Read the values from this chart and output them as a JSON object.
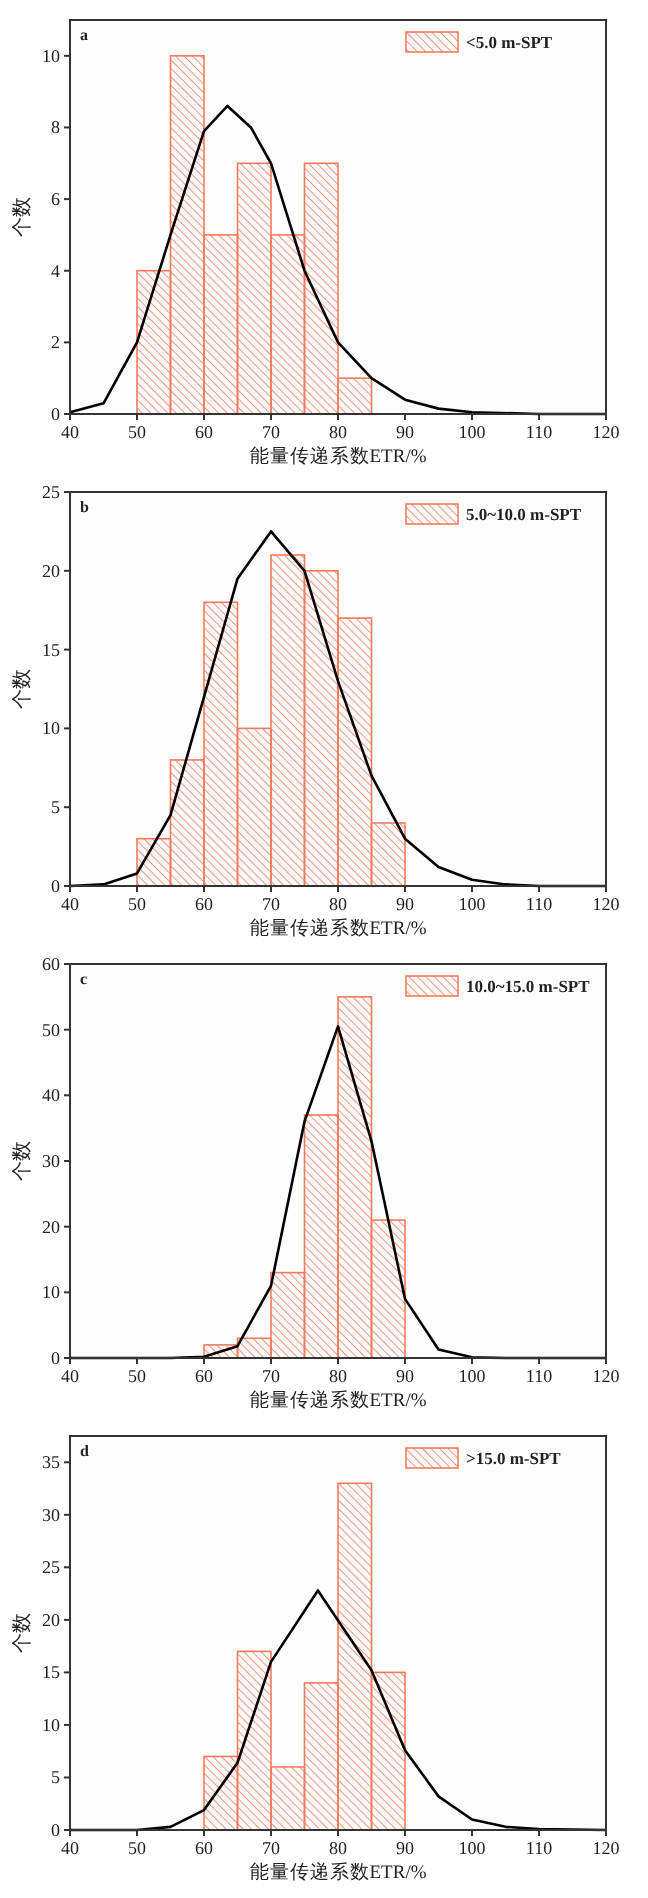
{
  "chart_data": [
    {
      "type": "histogram",
      "xlabel": "能量传递系数ETR/%",
      "ylabel": "个数",
      "annotations": [
        "a"
      ],
      "xlim": [
        40,
        120
      ],
      "xticks": [
        40,
        50,
        60,
        70,
        80,
        90,
        100,
        110,
        120
      ],
      "ylim": [
        0,
        11
      ],
      "yticks": [
        0,
        2,
        4,
        6,
        8,
        10
      ],
      "legend": "top right",
      "series": [
        {
          "type": "histogram",
          "name": "<5.0 m-SPT",
          "color": "#f47a5c",
          "bins": [
            50,
            55,
            60,
            65,
            70,
            75,
            80,
            85
          ],
          "values": [
            4,
            10,
            5,
            7,
            5,
            7,
            1
          ]
        },
        {
          "type": "line",
          "color": "#000000",
          "x": [
            40,
            45,
            50,
            55,
            60,
            63.5,
            67,
            70,
            75,
            80,
            85,
            90,
            95,
            100,
            110,
            120
          ],
          "values": [
            0.05,
            0.3,
            2,
            5,
            7.9,
            8.6,
            8,
            7,
            4,
            2,
            1,
            0.4,
            0.15,
            0.05,
            0,
            0
          ]
        }
      ]
    },
    {
      "type": "histogram",
      "xlabel": "能量传递系数ETR/%",
      "ylabel": "个数",
      "annotations": [
        "b"
      ],
      "xlim": [
        40,
        120
      ],
      "xticks": [
        40,
        50,
        60,
        70,
        80,
        90,
        100,
        110,
        120
      ],
      "ylim": [
        0,
        25
      ],
      "yticks": [
        0,
        5,
        10,
        15,
        20,
        25
      ],
      "legend": "top right",
      "series": [
        {
          "type": "histogram",
          "name": "5.0~10.0 m-SPT",
          "color": "#f47a5c",
          "bins": [
            50,
            55,
            60,
            65,
            70,
            75,
            80,
            85,
            90
          ],
          "values": [
            3,
            8,
            18,
            10,
            21,
            20,
            17,
            4
          ]
        },
        {
          "type": "line",
          "color": "#000000",
          "x": [
            40,
            45,
            50,
            55,
            60,
            65,
            70,
            75,
            80,
            85,
            90,
            95,
            100,
            105,
            110,
            120
          ],
          "values": [
            0,
            0.1,
            0.8,
            4.5,
            12,
            19.5,
            22.5,
            20,
            13,
            7,
            3,
            1.2,
            0.4,
            0.1,
            0,
            0
          ]
        }
      ]
    },
    {
      "type": "histogram",
      "xlabel": "能量传递系数ETR/%",
      "ylabel": "个数",
      "annotations": [
        "c"
      ],
      "xlim": [
        40,
        120
      ],
      "xticks": [
        40,
        50,
        60,
        70,
        80,
        90,
        100,
        110,
        120
      ],
      "ylim": [
        0,
        60
      ],
      "yticks": [
        0,
        10,
        20,
        30,
        40,
        50,
        60
      ],
      "legend": "top right",
      "series": [
        {
          "type": "histogram",
          "name": "10.0~15.0 m-SPT",
          "color": "#f47a5c",
          "bins": [
            60,
            65,
            70,
            75,
            80,
            85,
            90
          ],
          "values": [
            2,
            3,
            13,
            37,
            55,
            21
          ]
        },
        {
          "type": "line",
          "color": "#000000",
          "x": [
            40,
            55,
            60,
            65,
            70,
            75,
            80,
            85,
            90,
            95,
            100,
            105,
            120
          ],
          "values": [
            0,
            0,
            0.2,
            1.8,
            11,
            36,
            50.5,
            33,
            9,
            1.3,
            0.1,
            0,
            0
          ]
        }
      ]
    },
    {
      "type": "histogram",
      "xlabel": "能量传递系数ETR/%",
      "ylabel": "个数",
      "annotations": [
        "d"
      ],
      "xlim": [
        40,
        120
      ],
      "xticks": [
        40,
        50,
        60,
        70,
        80,
        90,
        100,
        110,
        120
      ],
      "ylim": [
        0,
        37.5
      ],
      "yticks": [
        0,
        5,
        10,
        15,
        20,
        25,
        30,
        35
      ],
      "legend": "top right",
      "series": [
        {
          "type": "histogram",
          "name": ">15.0 m-SPT",
          "color": "#f47a5c",
          "bins": [
            60,
            65,
            70,
            75,
            80,
            85,
            90
          ],
          "values": [
            7,
            17,
            6,
            14,
            33,
            15
          ]
        },
        {
          "type": "line",
          "color": "#000000",
          "x": [
            40,
            50,
            55,
            60,
            65,
            70,
            77,
            85,
            90,
            95,
            100,
            105,
            110,
            120
          ],
          "values": [
            0,
            0,
            0.3,
            1.9,
            6.4,
            16,
            22.8,
            15.2,
            7.6,
            3.2,
            1,
            0.3,
            0.1,
            0
          ]
        }
      ]
    }
  ]
}
